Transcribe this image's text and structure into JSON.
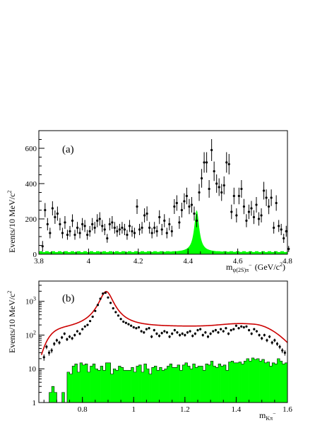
{
  "chart_data": [
    {
      "panel_label": "(a)",
      "type": "scatter",
      "xlabel_main": "m",
      "xlabel_sub": "ψ(2S)π",
      "xlabel_sup": "−",
      "xlabel_units": "(GeV/c",
      "xlabel_units_sup": "2",
      "xlabel_units_close": ")",
      "ylabel": "Events/10 MeV/c",
      "ylabel_sup": "2",
      "xlim": [
        3.8,
        4.8
      ],
      "ylim": [
        0,
        700
      ],
      "y_scale": "linear",
      "x_ticks": [
        {
          "v": 3.8,
          "label": "3.8"
        },
        {
          "v": 4.0,
          "label": "4"
        },
        {
          "v": 4.2,
          "label": "4.2"
        },
        {
          "v": 4.4,
          "label": "4.4"
        },
        {
          "v": 4.6,
          "label": "4.6"
        },
        {
          "v": 4.8,
          "label": "4.8"
        }
      ],
      "y_ticks": [
        {
          "v": 0,
          "label": "0"
        },
        {
          "v": 200,
          "label": "200"
        },
        {
          "v": 400,
          "label": "400"
        },
        {
          "v": 600,
          "label": "600"
        }
      ],
      "data_x_start": 3.815,
      "data_x_step": 0.01,
      "data_y": [
        45,
        250,
        170,
        120,
        260,
        210,
        230,
        170,
        120,
        180,
        110,
        130,
        190,
        110,
        150,
        120,
        170,
        160,
        110,
        130,
        170,
        150,
        190,
        200,
        160,
        140,
        90,
        170,
        180,
        150,
        130,
        140,
        150,
        140,
        110,
        160,
        130,
        120,
        270,
        140,
        150,
        220,
        230,
        150,
        120,
        150,
        130,
        210,
        140,
        190,
        120,
        170,
        130,
        270,
        290,
        180,
        250,
        300,
        330,
        270,
        280,
        230,
        190,
        350,
        430,
        520,
        520,
        370,
        590,
        470,
        400,
        380,
        350,
        390,
        520,
        510,
        240,
        330,
        220,
        330,
        370,
        270,
        190,
        240,
        260,
        210,
        280,
        200,
        220,
        360,
        320,
        270,
        320,
        150,
        290,
        160,
        140,
        90,
        130,
        30
      ],
      "data_err": [
        30,
        40,
        35,
        30,
        40,
        38,
        40,
        35,
        30,
        36,
        28,
        30,
        36,
        28,
        33,
        30,
        35,
        34,
        28,
        30,
        35,
        33,
        37,
        38,
        34,
        32,
        25,
        35,
        36,
        33,
        31,
        32,
        33,
        32,
        28,
        34,
        31,
        30,
        42,
        32,
        33,
        40,
        41,
        33,
        30,
        33,
        31,
        39,
        32,
        37,
        30,
        35,
        31,
        42,
        44,
        36,
        42,
        45,
        47,
        43,
        44,
        40,
        37,
        48,
        53,
        58,
        58,
        50,
        62,
        55,
        52,
        50,
        48,
        51,
        58,
        58,
        41,
        47,
        40,
        47,
        50,
        43,
        37,
        41,
        42,
        39,
        44,
        38,
        40,
        50,
        47,
        43,
        47,
        33,
        44,
        34,
        32,
        26,
        31,
        17
      ],
      "signal_mc": {
        "color": "#00ff00",
        "shape": "narrow peak",
        "peak_x": 4.435,
        "peak_height": 250,
        "width": 0.012,
        "floor": 12
      },
      "background_line": {
        "color": "#00ff00",
        "style": "dashed",
        "y": 12
      }
    },
    {
      "panel_label": "(b)",
      "type": "scatter",
      "xlabel_main": "m",
      "xlabel_sub": "Kπ",
      "xlabel_sup": "−",
      "xlabel_units": "",
      "ylabel": "Events/10 MeV/c",
      "ylabel_sup": "2",
      "xlim": [
        0.63,
        1.6
      ],
      "ylim": [
        1,
        4000
      ],
      "y_scale": "log",
      "x_ticks": [
        {
          "v": 0.8,
          "label": "0.8"
        },
        {
          "v": 1.0,
          "label": "1"
        },
        {
          "v": 1.2,
          "label": "1.2"
        },
        {
          "v": 1.4,
          "label": "1.4"
        },
        {
          "v": 1.6,
          "label": "1.6"
        }
      ],
      "y_ticks": [
        {
          "v": 1,
          "label": "1"
        },
        {
          "v": 10,
          "label": "10"
        },
        {
          "v": 100,
          "label": "10",
          "exp": "2"
        },
        {
          "v": 1000,
          "label": "10",
          "exp": "3"
        }
      ],
      "fit_curve": {
        "color": "#cc0000",
        "model": "K*(892) Breit-Wigner + broad component"
      },
      "data_x_start": 0.64,
      "data_x_step": 0.01,
      "data_y": [
        null,
        22,
        45,
        30,
        35,
        55,
        70,
        60,
        85,
        110,
        75,
        90,
        80,
        100,
        130,
        110,
        150,
        180,
        200,
        260,
        350,
        520,
        780,
        1200,
        1700,
        1800,
        1300,
        900,
        620,
        480,
        380,
        300,
        250,
        230,
        210,
        190,
        170,
        160,
        170,
        130,
        120,
        150,
        160,
        90,
        140,
        110,
        95,
        115,
        130,
        120,
        90,
        110,
        140,
        120,
        100,
        110,
        100,
        120,
        130,
        95,
        110,
        140,
        150,
        100,
        120,
        90,
        110,
        130,
        140,
        120,
        150,
        130,
        160,
        110,
        140,
        150,
        190,
        160,
        180,
        170,
        180,
        140,
        110,
        150,
        130,
        100,
        80,
        100,
        70,
        90,
        60,
        70,
        55,
        45,
        35,
        30
      ],
      "mc_hist": {
        "color": "#00ff00",
        "x_start": 0.64,
        "x_step": 0.01,
        "values": [
          1,
          1,
          1,
          2,
          3,
          2,
          1,
          1,
          2,
          1,
          8,
          7,
          12,
          14,
          8,
          15,
          13,
          14,
          8,
          12,
          14,
          10,
          9,
          12,
          9,
          15,
          15,
          7,
          10,
          9,
          12,
          11,
          9,
          9,
          9,
          11,
          8,
          12,
          13,
          8,
          14,
          10,
          7,
          11,
          12,
          9,
          11,
          9,
          10,
          12,
          14,
          11,
          11,
          13,
          9,
          13,
          15,
          12,
          10,
          14,
          11,
          12,
          12,
          9,
          14,
          13,
          17,
          12,
          11,
          14,
          12,
          13,
          9,
          16,
          17,
          15,
          15,
          16,
          14,
          17,
          20,
          17,
          21,
          19,
          20,
          17,
          19,
          15,
          16,
          12,
          15,
          14,
          20,
          17,
          14,
          15
        ]
      }
    }
  ]
}
